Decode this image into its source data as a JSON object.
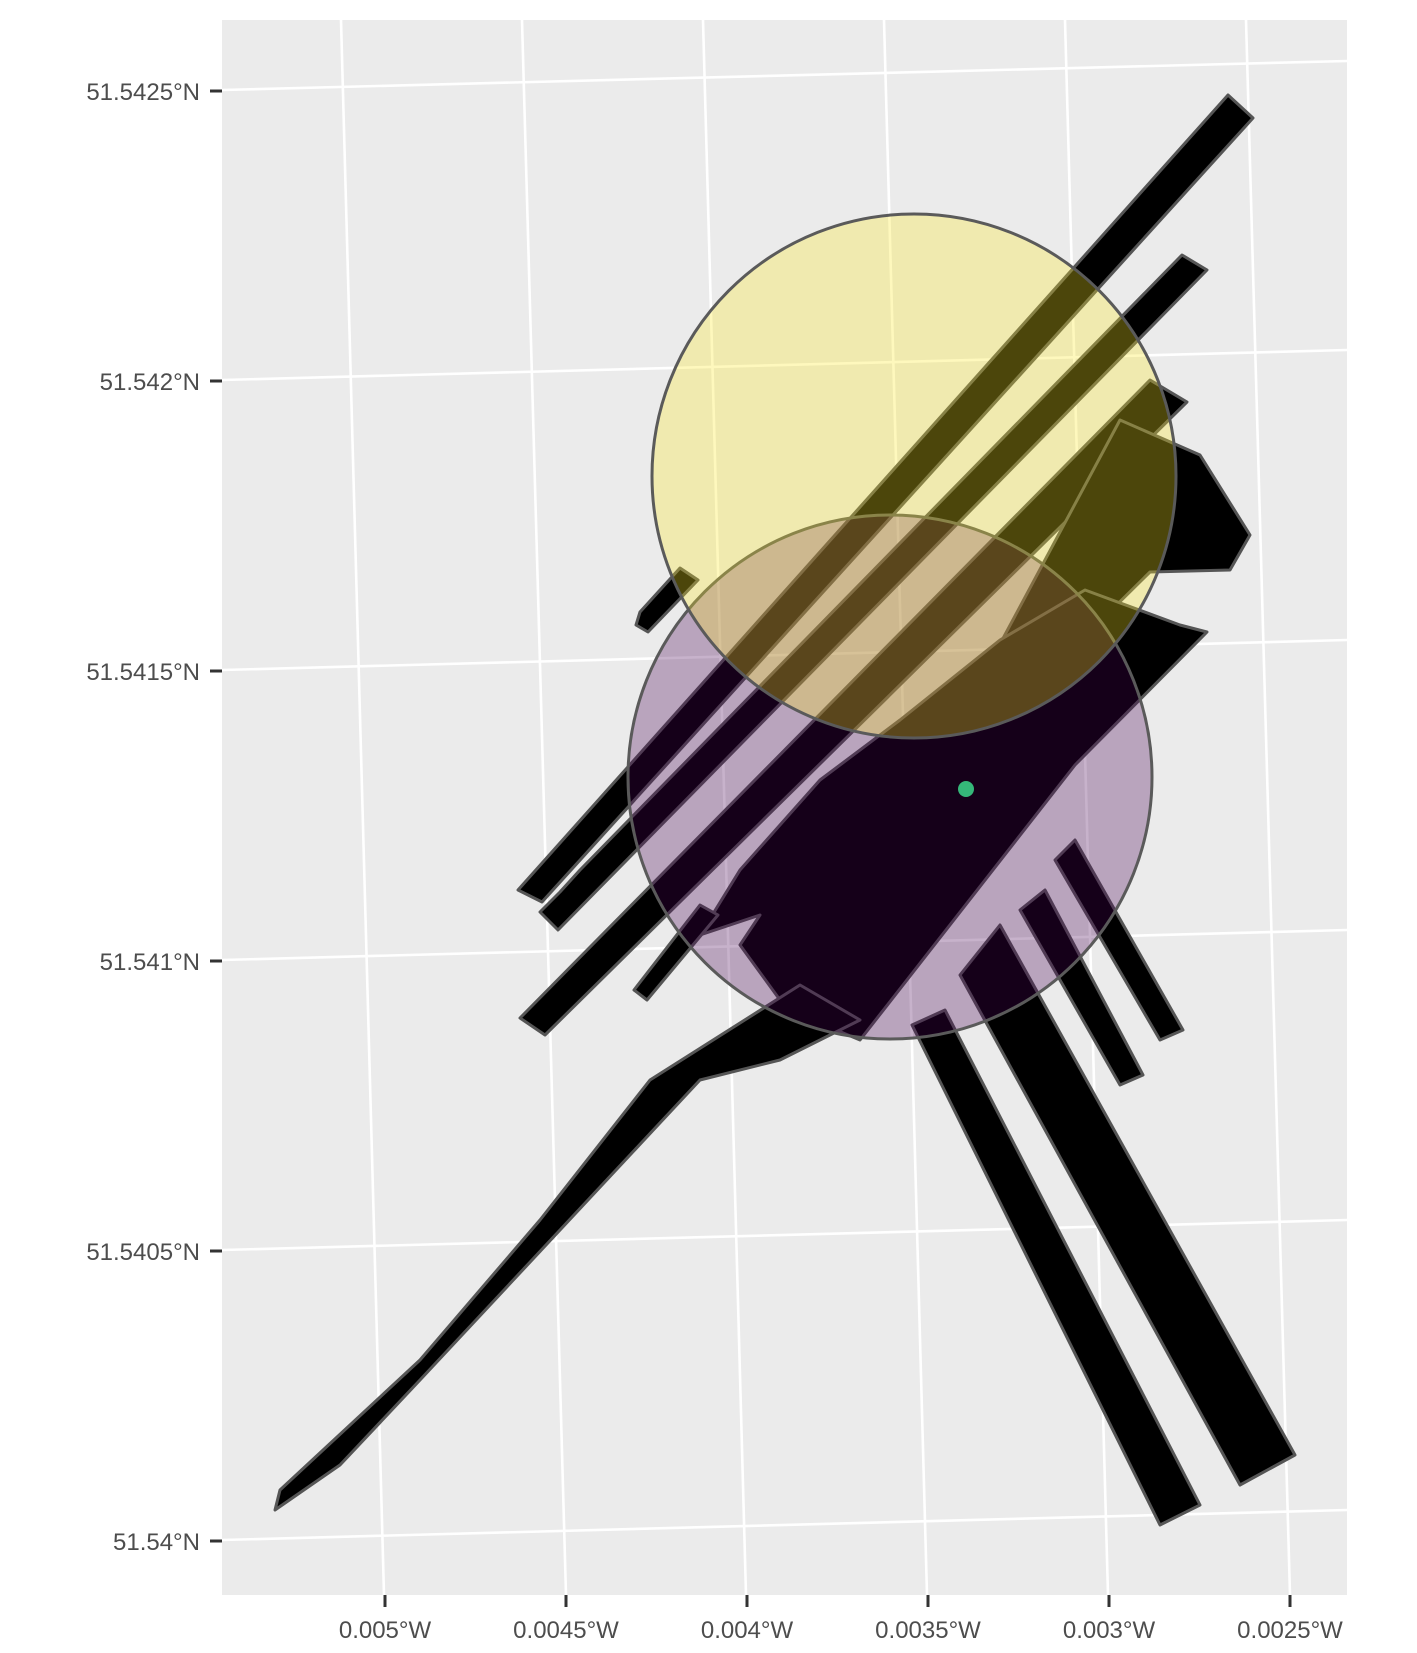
{
  "map": {
    "y_axis_labels": [
      "51.5425°N",
      "51.542°N",
      "51.5415°N",
      "51.541°N",
      "51.5405°N",
      "51.54°N"
    ],
    "x_axis_labels": [
      "0.005°W",
      "0.0045°W",
      "0.004°W",
      "0.0035°W",
      "0.003°W",
      "0.0025°W"
    ],
    "layers": [
      {
        "name": "building-polygons",
        "fill": "#000000",
        "stroke": "#555555"
      },
      {
        "name": "buffer-circle-purple",
        "fill": "#440154",
        "opacity": 0.3
      },
      {
        "name": "buffer-circle-yellow",
        "fill": "#fde725",
        "opacity": 0.3
      },
      {
        "name": "centroid-point",
        "fill": "#35b779"
      }
    ],
    "colors": {
      "panel_background": "#ebebeb",
      "grid": "#ffffff",
      "tick_text": "#4d4d4d"
    }
  }
}
